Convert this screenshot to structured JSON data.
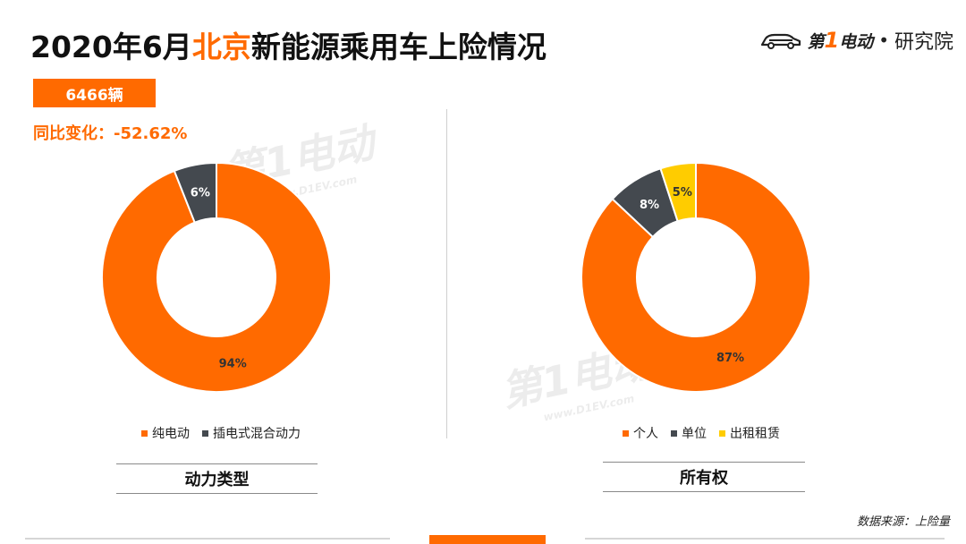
{
  "header": {
    "title_pre": "2020年6月",
    "title_highlight": "北京",
    "title_post": "新能源乘用车上险情况"
  },
  "brand": {
    "name_a": "第",
    "name_one": "1",
    "name_b": "电动",
    "separator": "•",
    "institute": "研究院"
  },
  "summary": {
    "total": "6466辆",
    "yoy": "同比变化：-52.62%"
  },
  "watermark": {
    "text": "第1电动",
    "url": "www.D1EV.com"
  },
  "colors": {
    "accent": "#FF6A00",
    "dark": "#44494F",
    "yellow": "#FFCC00"
  },
  "chart_data": [
    {
      "type": "pie",
      "donut": true,
      "title": "动力类型",
      "categories": [
        "纯电动",
        "插电式混合动力"
      ],
      "values": [
        94,
        6
      ],
      "labels": [
        "94%",
        "6%"
      ],
      "colors": [
        "#FF6A00",
        "#44494F"
      ],
      "legend": "bottom"
    },
    {
      "type": "pie",
      "donut": true,
      "title": "所有权",
      "categories": [
        "个人",
        "单位",
        "出租租赁"
      ],
      "values": [
        87,
        8,
        5
      ],
      "labels": [
        "87%",
        "8%",
        "5%"
      ],
      "colors": [
        "#FF6A00",
        "#44494F",
        "#FFCC00"
      ],
      "legend": "bottom"
    }
  ],
  "source": "数据来源：上险量"
}
